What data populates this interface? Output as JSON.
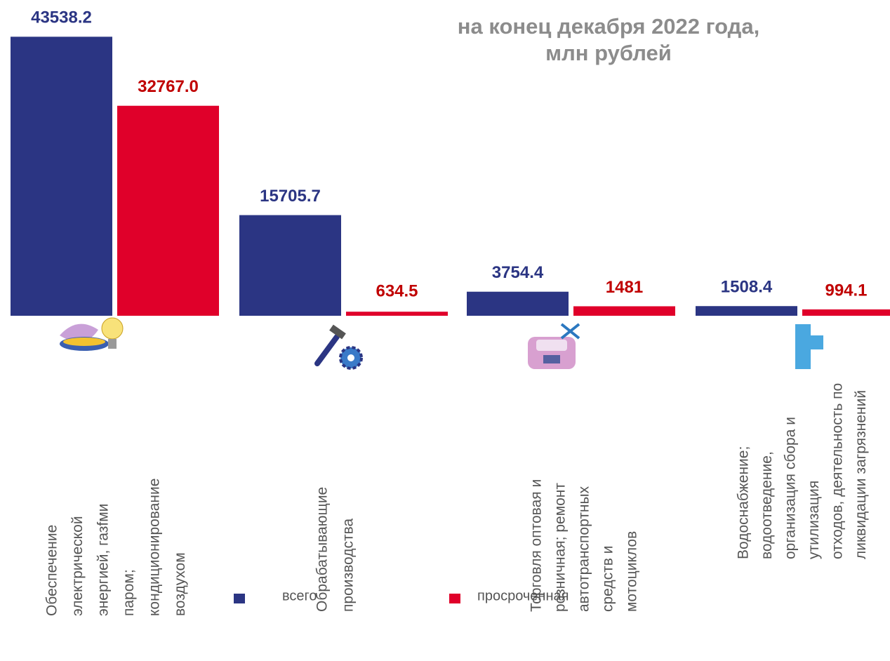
{
  "chart_data": {
    "type": "bar",
    "title": [
      "на конец  декабря 2022 года,",
      "млн рублей"
    ],
    "categories": [
      [
        "Обеспечение",
        "электрической",
        "энергией, газfми",
        "паром;",
        "кондиционирование",
        "воздухом"
      ],
      [
        "Обрабатывающие",
        "производства"
      ],
      [
        "Торговля оптовая и",
        "розничная; ремонт",
        "автотранспортных",
        "средств и",
        "мотоциклов"
      ],
      [
        "Водоснабжение;",
        "водоотведение,",
        "организация сбора и",
        "утилизация",
        "отходов, деятельность по",
        "ликвидации  загрязнений"
      ]
    ],
    "series": [
      {
        "name": "всего",
        "color": "#2b3583",
        "label_color": "#2b3583",
        "values": [
          43538.2,
          15705.7,
          3754.4,
          1508.4
        ],
        "value_labels": [
          "43538.2",
          "15705.7",
          "3754.4",
          "1508.4"
        ]
      },
      {
        "name": "просроченная",
        "color": "#e0002a",
        "label_color": "#c00000",
        "values": [
          32767.0,
          634.5,
          1481,
          994.1
        ],
        "value_labels": [
          "32767.0",
          "634.5",
          "1481",
          "994.1"
        ]
      }
    ],
    "ylim": [
      0,
      45000
    ],
    "legend": "bottom"
  }
}
